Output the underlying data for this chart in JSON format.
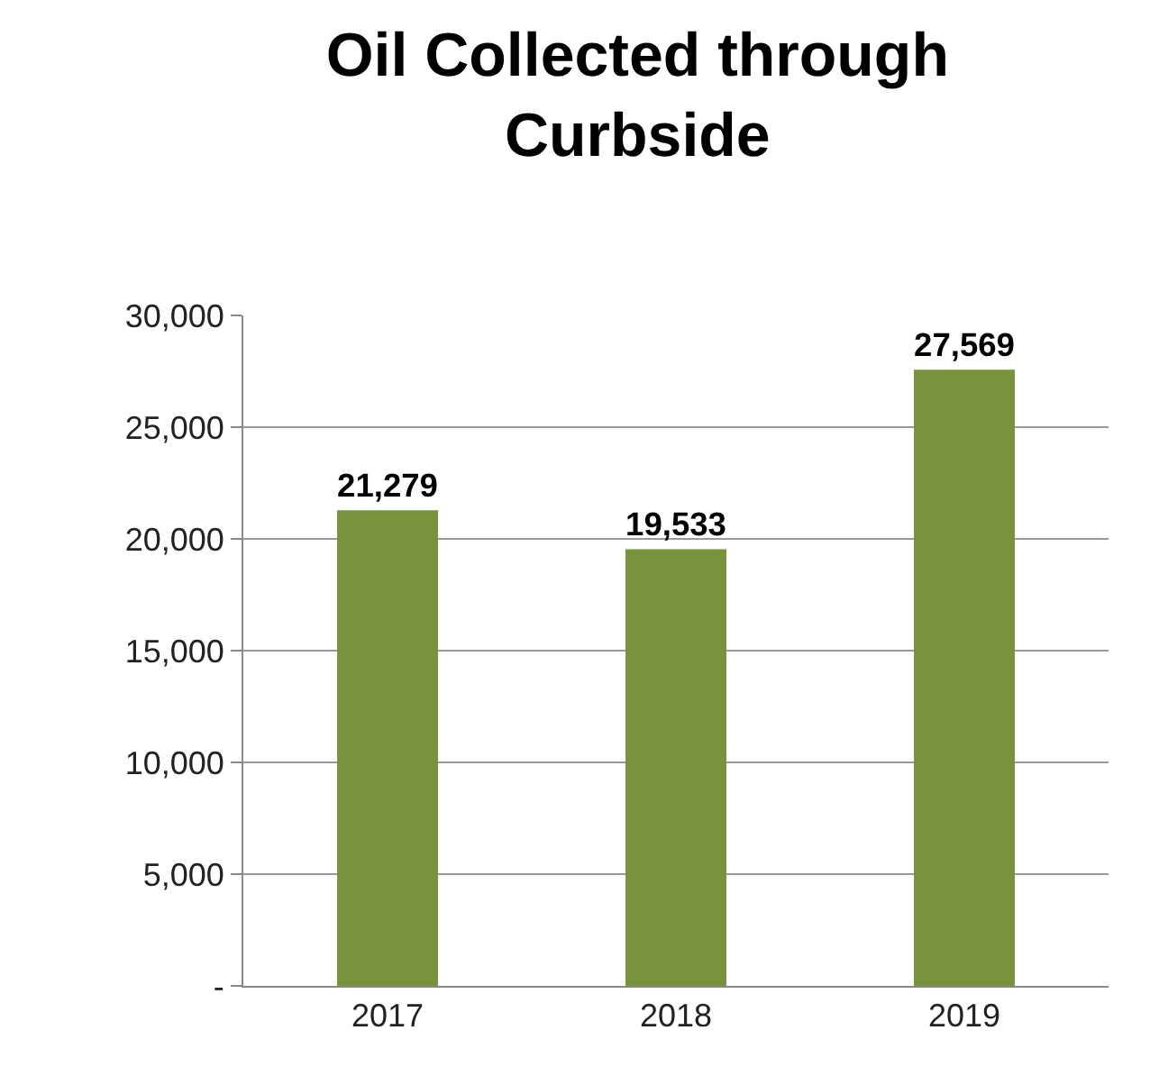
{
  "chart_data": {
    "type": "bar",
    "title": "Oil Collected through\nCurbside",
    "categories": [
      "2017",
      "2018",
      "2019"
    ],
    "values": [
      21279,
      19533,
      27569
    ],
    "color": "#77933c",
    "value_labels": [
      "21,279",
      "19,533",
      "27,569"
    ],
    "ylim": [
      0,
      30000
    ],
    "yticks": [
      {
        "value": 0,
        "label": "-"
      },
      {
        "value": 5000,
        "label": "5,000"
      },
      {
        "value": 10000,
        "label": "10,000"
      },
      {
        "value": 15000,
        "label": "15,000"
      },
      {
        "value": 20000,
        "label": "20,000"
      },
      {
        "value": 25000,
        "label": "25,000"
      },
      {
        "value": 30000,
        "label": "30,000"
      }
    ],
    "grid": "y",
    "legend": false
  }
}
